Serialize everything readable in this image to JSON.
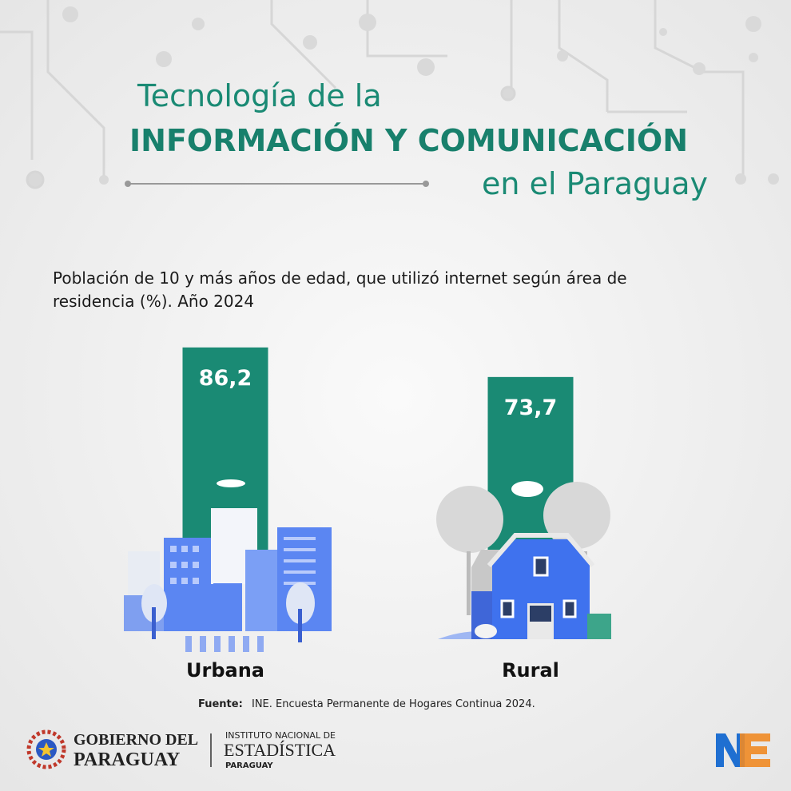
{
  "header": {
    "title_line_1": "Tecnología de la",
    "title_line_2": "INFORMACIÓN  Y COMUNICACIÓN",
    "title_line_3": "en el Paraguay"
  },
  "chart_data": {
    "type": "bar",
    "title_lines": [
      "Población de 10 y más años de edad, que utilizó internet según área de",
      "residencia (%). Año 2024"
    ],
    "categories": [
      "Urbana",
      "Rural"
    ],
    "values": [
      86.2,
      73.7
    ],
    "value_labels": [
      "86,2",
      "73,7"
    ],
    "color": "#1a8a74"
  },
  "footer": {
    "source_label": "Fuente:",
    "source_text": "INE. Encuesta Permanente de Hogares Continua 2024.",
    "logos": [
      {
        "line_1": "GOBIERNO DEL",
        "line_2": "PARAGUAY"
      },
      {
        "line_1": "INSTITUTO NACIONAL DE",
        "line_2": "ESTADÍSTICA",
        "line_3": "PARAGUAY"
      }
    ]
  }
}
